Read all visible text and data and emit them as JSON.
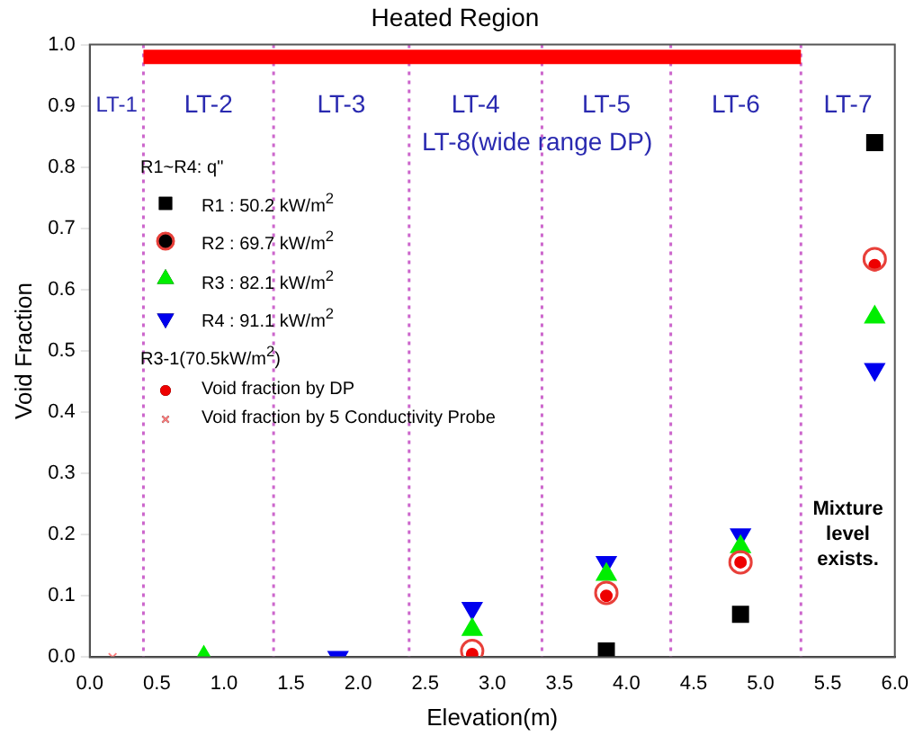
{
  "chart_data": {
    "type": "scatter",
    "title": "Heated Region",
    "xlabel": "Elevation(m)",
    "ylabel": "Void Fraction",
    "legend_title": "R1~R4: q''",
    "xlim": [
      0,
      6
    ],
    "ylim": [
      0,
      1
    ],
    "xticks": [
      {
        "value": 0,
        "label": "0.0"
      },
      {
        "value": 0.5,
        "label": "0.5"
      },
      {
        "value": 1,
        "label": "1.0"
      },
      {
        "value": 1.5,
        "label": "1.5"
      },
      {
        "value": 2,
        "label": "2.0"
      },
      {
        "value": 2.5,
        "label": "2.5"
      },
      {
        "value": 3,
        "label": "3.0"
      },
      {
        "value": 3.5,
        "label": "3.5"
      },
      {
        "value": 4,
        "label": "4.0"
      },
      {
        "value": 4.5,
        "label": "4.5"
      },
      {
        "value": 5,
        "label": "5.0"
      },
      {
        "value": 5.5,
        "label": "5.5"
      },
      {
        "value": 6,
        "label": "6.0"
      }
    ],
    "yticks": [
      {
        "value": 0,
        "label": "0.0"
      },
      {
        "value": 0.1,
        "label": "0.1"
      },
      {
        "value": 0.2,
        "label": "0.2"
      },
      {
        "value": 0.3,
        "label": "0.3"
      },
      {
        "value": 0.4,
        "label": "0.4"
      },
      {
        "value": 0.5,
        "label": "0.5"
      },
      {
        "value": 0.6,
        "label": "0.6"
      },
      {
        "value": 0.7,
        "label": "0.7"
      },
      {
        "value": 0.8,
        "label": "0.8"
      },
      {
        "value": 0.9,
        "label": "0.9"
      },
      {
        "value": 1,
        "label": "1.0"
      }
    ],
    "grid": false,
    "legend": "top left",
    "series": [
      {
        "name": "R1 : 50.2 kW/m$^{2}$",
        "color": "#000000",
        "marker": "square",
        "x": [
          3.85,
          4.85,
          5.85
        ],
        "values": [
          0.01,
          0.07,
          0.84
        ]
      },
      {
        "name": "R2 : 69.7 kW/m$^{2}$",
        "color": "#e8403a",
        "marker": "circle",
        "x": [
          2.85,
          3.85,
          4.85,
          5.85
        ],
        "values": [
          0.01,
          0.105,
          0.155,
          0.65
        ]
      },
      {
        "name": "R3 : 82.1 kW/m$^{2}$",
        "color": "#00ee00",
        "marker": "triangle",
        "x": [
          0.85,
          2.85,
          3.85,
          4.85,
          5.85
        ],
        "values": [
          0,
          0.045,
          0.135,
          0.18,
          0.555
        ]
      },
      {
        "name": "R4 : 91.1 kW/m$^{2}$",
        "color": "#0000ee",
        "marker": "triangle-down",
        "x": [
          1.85,
          2.85,
          3.85,
          4.85,
          5.85
        ],
        "values": [
          0,
          0.08,
          0.155,
          0.2,
          0.47
        ]
      },
      {
        "name": "Void fraction by DP",
        "color": "#ee0000",
        "marker": "circle",
        "x": [
          2.85,
          3.85,
          4.85,
          5.85
        ],
        "values": [
          0.005,
          0.1,
          0.155,
          0.64
        ]
      },
      {
        "name": "Void fraction by 5 Conductivity Probe",
        "color": "#ff8080",
        "marker": "cross",
        "x": [
          0.17
        ],
        "values": [
          0
        ]
      },
      {
        "type": "line",
        "color": "#ff0000",
        "marker": "none",
        "x": [
          0.4,
          5.3
        ],
        "values": [
          0.98,
          0.98
        ]
      }
    ],
    "ref_lines": [
      {
        "axis": "x",
        "value": 0.4,
        "color": "#cc66cc",
        "line_style": "dotted"
      },
      {
        "axis": "x",
        "value": 1.37,
        "color": "#cc66cc",
        "line_style": "dotted"
      },
      {
        "axis": "x",
        "value": 2.38,
        "color": "#cc66cc",
        "line_style": "dotted"
      },
      {
        "axis": "x",
        "value": 3.37,
        "color": "#cc66cc",
        "line_style": "dotted"
      },
      {
        "axis": "x",
        "value": 4.33,
        "color": "#cc66cc",
        "line_style": "dotted"
      },
      {
        "axis": "x",
        "value": 5.3,
        "color": "#cc66cc",
        "line_style": "dotted"
      }
    ],
    "annotations": [
      "LT-1",
      "LT-2",
      "LT-3",
      "LT-4",
      "LT-5",
      "LT-6",
      "LT-7",
      "LT-8(wide range DP)",
      "R3-1(70.5kW/m$^{2}$)",
      "Mixture level exists."
    ]
  }
}
